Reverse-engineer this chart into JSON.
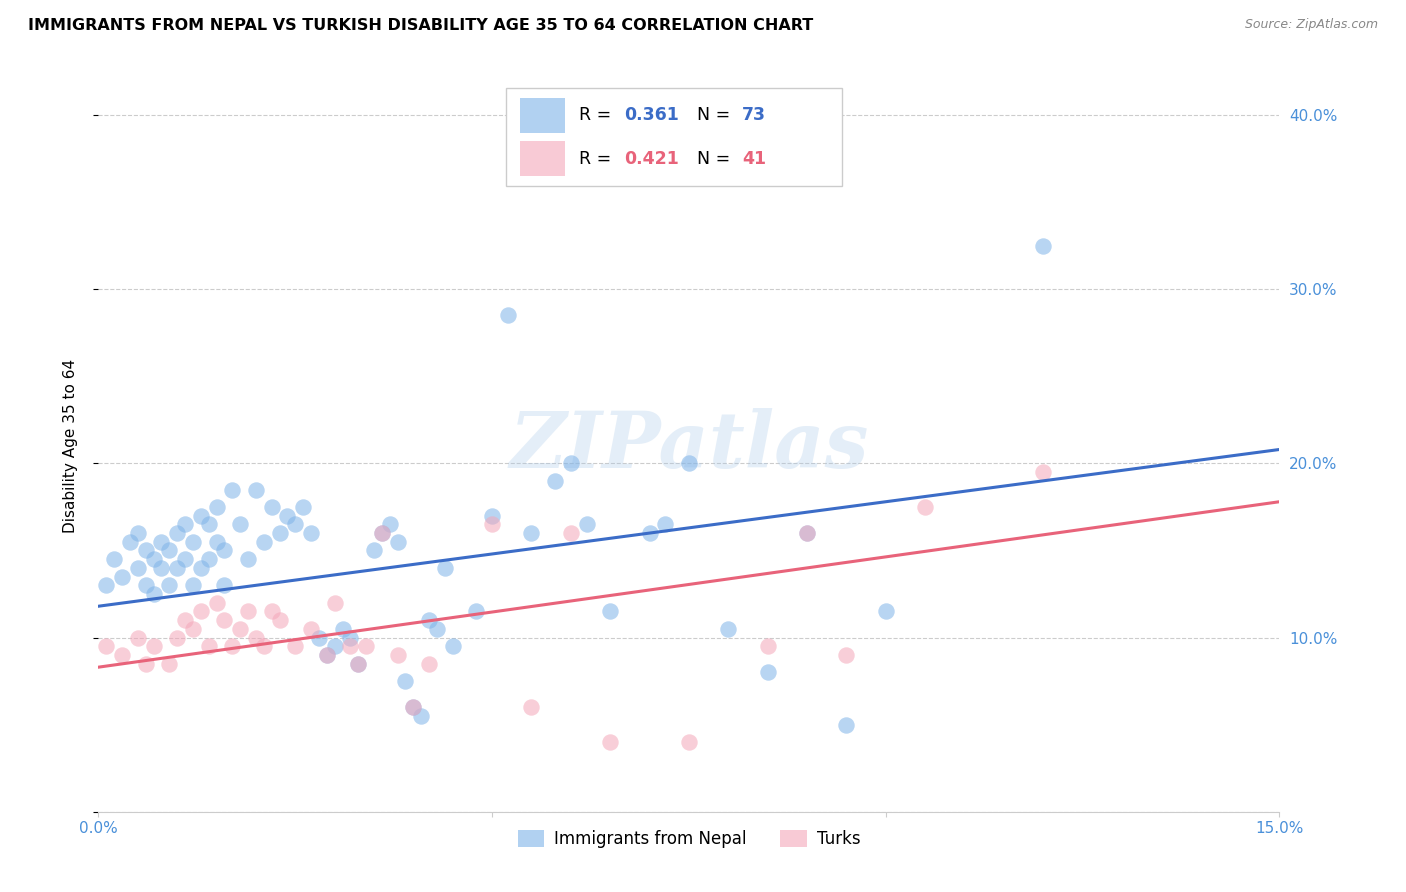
{
  "title": "IMMIGRANTS FROM NEPAL VS TURKISH DISABILITY AGE 35 TO 64 CORRELATION CHART",
  "source": "Source: ZipAtlas.com",
  "ylabel_left": "Disability Age 35 to 64",
  "xlim": [
    0.0,
    0.15
  ],
  "ylim": [
    0.0,
    0.42
  ],
  "x_ticks": [
    0.0,
    0.05,
    0.1,
    0.15
  ],
  "y_ticks": [
    0.0,
    0.1,
    0.2,
    0.3,
    0.4
  ],
  "x_tick_labels": [
    "0.0%",
    "",
    "",
    "15.0%"
  ],
  "y_tick_labels_right": [
    "",
    "10.0%",
    "20.0%",
    "30.0%",
    "40.0%"
  ],
  "blue_color": "#7EB3E8",
  "pink_color": "#F4A7B9",
  "line_blue": "#3B6CC7",
  "line_pink": "#E8637A",
  "legend_label_blue": "Immigrants from Nepal",
  "legend_label_pink": "Turks",
  "watermark": "ZIPatlas",
  "blue_scatter_x": [
    0.001,
    0.002,
    0.003,
    0.004,
    0.005,
    0.005,
    0.006,
    0.006,
    0.007,
    0.007,
    0.008,
    0.008,
    0.009,
    0.009,
    0.01,
    0.01,
    0.011,
    0.011,
    0.012,
    0.012,
    0.013,
    0.013,
    0.014,
    0.014,
    0.015,
    0.015,
    0.016,
    0.016,
    0.017,
    0.018,
    0.019,
    0.02,
    0.021,
    0.022,
    0.023,
    0.024,
    0.025,
    0.026,
    0.027,
    0.028,
    0.029,
    0.03,
    0.031,
    0.032,
    0.033,
    0.035,
    0.036,
    0.037,
    0.038,
    0.039,
    0.04,
    0.041,
    0.042,
    0.043,
    0.044,
    0.045,
    0.048,
    0.05,
    0.052,
    0.055,
    0.058,
    0.06,
    0.062,
    0.065,
    0.07,
    0.072,
    0.075,
    0.08,
    0.085,
    0.09,
    0.095,
    0.1,
    0.12
  ],
  "blue_scatter_y": [
    0.13,
    0.145,
    0.135,
    0.155,
    0.14,
    0.16,
    0.13,
    0.15,
    0.125,
    0.145,
    0.14,
    0.155,
    0.13,
    0.15,
    0.14,
    0.16,
    0.145,
    0.165,
    0.13,
    0.155,
    0.14,
    0.17,
    0.145,
    0.165,
    0.175,
    0.155,
    0.15,
    0.13,
    0.185,
    0.165,
    0.145,
    0.185,
    0.155,
    0.175,
    0.16,
    0.17,
    0.165,
    0.175,
    0.16,
    0.1,
    0.09,
    0.095,
    0.105,
    0.1,
    0.085,
    0.15,
    0.16,
    0.165,
    0.155,
    0.075,
    0.06,
    0.055,
    0.11,
    0.105,
    0.14,
    0.095,
    0.115,
    0.17,
    0.285,
    0.16,
    0.19,
    0.2,
    0.165,
    0.115,
    0.16,
    0.165,
    0.2,
    0.105,
    0.08,
    0.16,
    0.05,
    0.115,
    0.325
  ],
  "pink_scatter_x": [
    0.001,
    0.003,
    0.005,
    0.006,
    0.007,
    0.009,
    0.01,
    0.011,
    0.012,
    0.013,
    0.014,
    0.015,
    0.016,
    0.017,
    0.018,
    0.019,
    0.02,
    0.021,
    0.022,
    0.023,
    0.025,
    0.027,
    0.029,
    0.03,
    0.032,
    0.033,
    0.034,
    0.036,
    0.038,
    0.04,
    0.042,
    0.05,
    0.055,
    0.06,
    0.065,
    0.075,
    0.085,
    0.09,
    0.095,
    0.105,
    0.12
  ],
  "pink_scatter_y": [
    0.095,
    0.09,
    0.1,
    0.085,
    0.095,
    0.085,
    0.1,
    0.11,
    0.105,
    0.115,
    0.095,
    0.12,
    0.11,
    0.095,
    0.105,
    0.115,
    0.1,
    0.095,
    0.115,
    0.11,
    0.095,
    0.105,
    0.09,
    0.12,
    0.095,
    0.085,
    0.095,
    0.16,
    0.09,
    0.06,
    0.085,
    0.165,
    0.06,
    0.16,
    0.04,
    0.04,
    0.095,
    0.16,
    0.09,
    0.175,
    0.195
  ],
  "blue_line_x": [
    0.0,
    0.15
  ],
  "blue_line_y": [
    0.118,
    0.208
  ],
  "pink_line_x": [
    0.0,
    0.15
  ],
  "pink_line_y": [
    0.083,
    0.178
  ]
}
